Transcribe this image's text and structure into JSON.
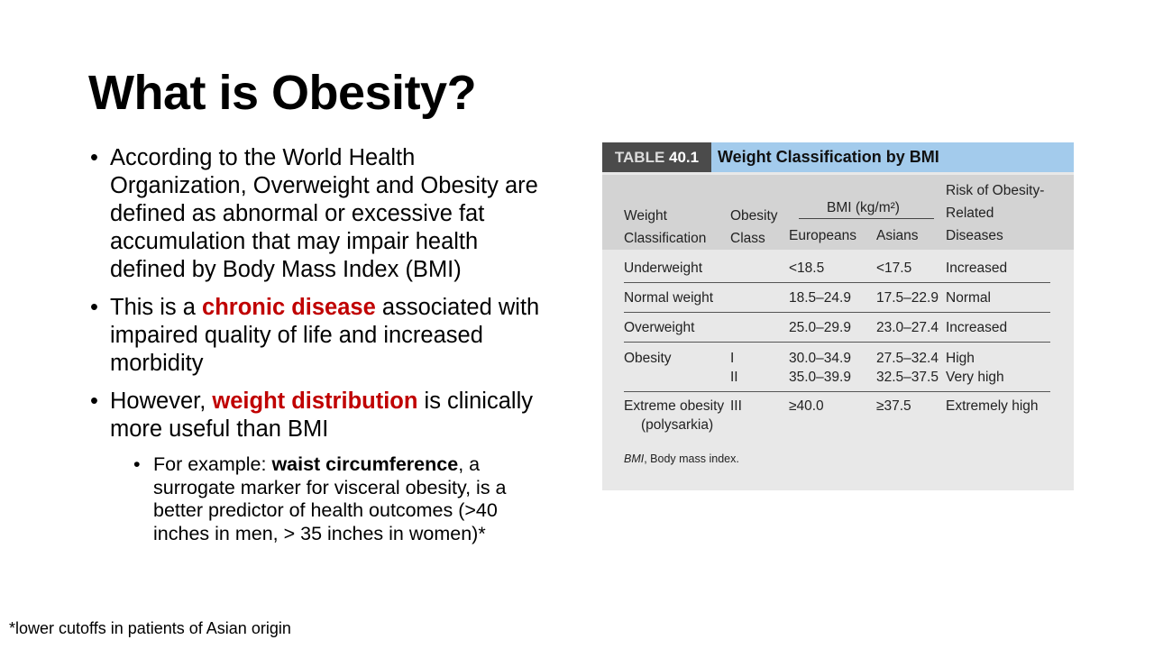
{
  "title": "What is Obesity?",
  "bullets": [
    {
      "text": "According to the World Health Organization, Overweight and Obesity are defined as abnormal or excessive fat accumulation that may impair health defined by Body Mass Index (BMI)"
    },
    {
      "pre": "This is a ",
      "highlight": "chronic disease",
      "post": " associated with impaired quality of life and increased morbidity"
    },
    {
      "pre": "However, ",
      "highlight": "weight distribution",
      "post": " is clinically more useful than BMI"
    }
  ],
  "sub_bullet": {
    "pre": "For example: ",
    "bold": "waist circumference",
    "post": ", a surrogate marker for visceral obesity, is a better predictor of health outcomes (>40 inches in men, > 35 inches in women)*"
  },
  "footnote": "*lower cutoffs in patients of Asian origin",
  "table": {
    "label_prefix": "TABLE ",
    "label_number": "40.1",
    "title": "Weight Classification by BMI",
    "headers": {
      "weight_1": "Weight",
      "weight_2": "Classification",
      "class_1": "Obesity",
      "class_2": "Class",
      "bmi_group": "BMI (kg/m²)",
      "europeans": "Europeans",
      "asians": "Asians",
      "risk_1": "Risk of Obesity-",
      "risk_2": "Related",
      "risk_3": "Diseases"
    },
    "rows": [
      {
        "classification": "Underweight",
        "class": "",
        "europeans": "<18.5",
        "asians": "<17.5",
        "risk": "Increased"
      },
      {
        "classification": "Normal weight",
        "class": "",
        "europeans": "18.5–24.9",
        "asians": "17.5–22.9",
        "risk": "Normal"
      },
      {
        "classification": "Overweight",
        "class": "",
        "europeans": "25.0–29.9",
        "asians": "23.0–27.4",
        "risk": "Increased"
      },
      {
        "classification": "Obesity",
        "class": "I",
        "europeans": "30.0–34.9",
        "asians": "27.5–32.4",
        "risk": "High"
      },
      {
        "classification": "",
        "class": "II",
        "europeans": "35.0–39.9",
        "asians": "32.5–37.5",
        "risk": "Very high"
      },
      {
        "classification": "Extreme obesity",
        "classification_2": "(polysarkia)",
        "class": "III",
        "europeans": "≥40.0",
        "asians": "≥37.5",
        "risk": "Extremely high"
      }
    ],
    "note_abbr": "BMI",
    "note_text": ", Body mass index."
  }
}
